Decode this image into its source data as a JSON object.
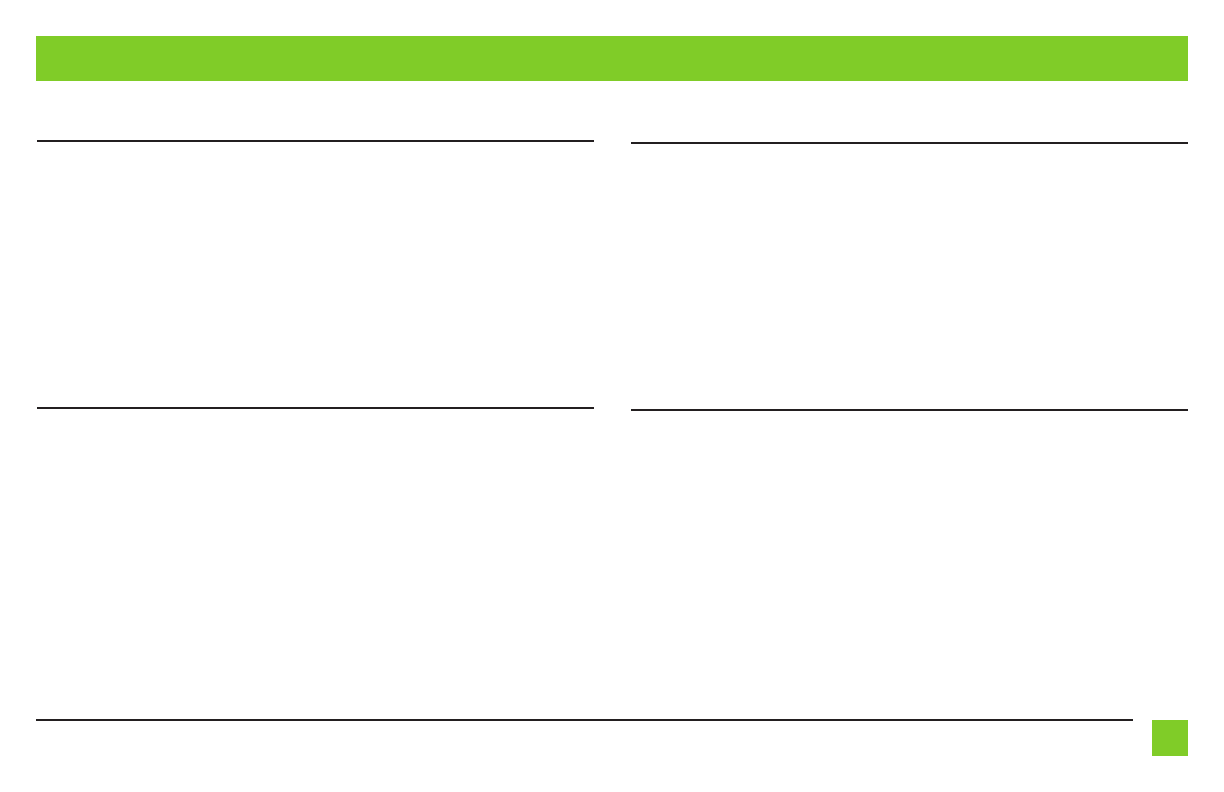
{
  "colors": {
    "accent": "#80cc28",
    "rule": "#231f20"
  },
  "header": {
    "title": ""
  },
  "sections": [
    {
      "title": ""
    },
    {
      "title": ""
    },
    {
      "title": ""
    },
    {
      "title": ""
    }
  ],
  "footer": {
    "page_number": ""
  }
}
